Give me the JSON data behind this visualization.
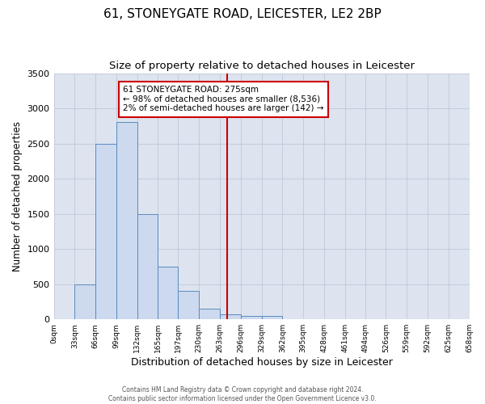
{
  "title": "61, STONEYGATE ROAD, LEICESTER, LE2 2BP",
  "subtitle": "Size of property relative to detached houses in Leicester",
  "xlabel": "Distribution of detached houses by size in Leicester",
  "ylabel": "Number of detached properties",
  "bar_values": [
    0,
    500,
    2500,
    2800,
    1500,
    750,
    400,
    150,
    75,
    50,
    50,
    0,
    0,
    0,
    0,
    0,
    0,
    0,
    0,
    0
  ],
  "bin_edges": [
    0,
    33,
    66,
    99,
    132,
    165,
    197,
    230,
    263,
    296,
    329,
    362,
    395,
    428,
    461,
    494,
    526,
    559,
    592,
    625,
    658
  ],
  "tick_labels": [
    "0sqm",
    "33sqm",
    "66sqm",
    "99sqm",
    "132sqm",
    "165sqm",
    "197sqm",
    "230sqm",
    "263sqm",
    "296sqm",
    "329sqm",
    "362sqm",
    "395sqm",
    "428sqm",
    "461sqm",
    "494sqm",
    "526sqm",
    "559sqm",
    "592sqm",
    "625sqm",
    "658sqm"
  ],
  "property_size": 275,
  "ylim": [
    0,
    3500
  ],
  "bar_facecolor": "#ccd9ee",
  "bar_edgecolor": "#5a8abf",
  "vline_color": "#cc0000",
  "annotation_line1": "61 STONEYGATE ROAD: 275sqm",
  "annotation_line2": "← 98% of detached houses are smaller (8,536)",
  "annotation_line3": "2% of semi-detached houses are larger (142) →",
  "annotation_box_facecolor": "#ffffff",
  "annotation_box_edgecolor": "#cc0000",
  "grid_color": "#c0c8d8",
  "background_color": "#dde4f0",
  "footer_line1": "Contains HM Land Registry data © Crown copyright and database right 2024.",
  "footer_line2": "Contains public sector information licensed under the Open Government Licence v3.0.",
  "title_fontsize": 11,
  "subtitle_fontsize": 9.5,
  "ylabel_fontsize": 8.5,
  "xlabel_fontsize": 9,
  "tick_fontsize": 6.5,
  "ytick_fontsize": 8
}
